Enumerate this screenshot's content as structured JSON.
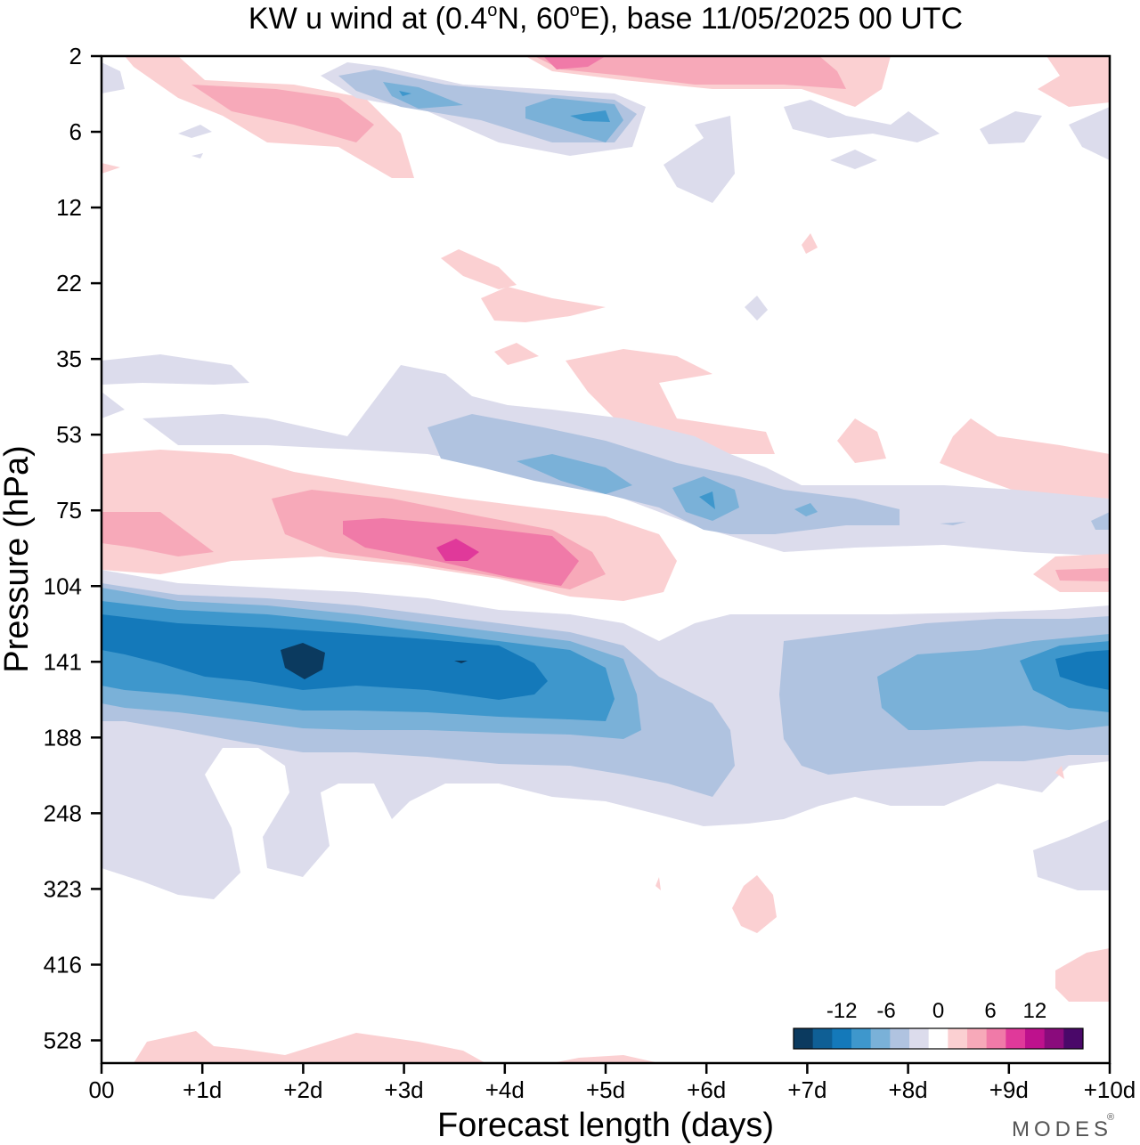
{
  "chart_data": {
    "type": "heatmap",
    "title": "KW u wind at (0.4°N, 60°E),  base 11/05/2025  00 UTC",
    "title_parts": {
      "prefix": "KW u wind at (0.4",
      "deg1": "o",
      "mid": "N, 60",
      "deg2": "o",
      "suffix": "E),  base 11/05/2025  00 UTC"
    },
    "xlabel": "Forecast length (days)",
    "ylabel": "Pressure (hPa)",
    "x_ticks": [
      "00",
      "+1d",
      "+2d",
      "+3d",
      "+4d",
      "+5d",
      "+6d",
      "+7d",
      "+8d",
      "+9d",
      "+10d"
    ],
    "xlim": [
      0,
      10
    ],
    "y_ticks": [
      "2",
      "6",
      "12",
      "22",
      "35",
      "53",
      "75",
      "104",
      "141",
      "188",
      "248",
      "323",
      "416",
      "528"
    ],
    "y_order": "top-to-bottom",
    "colorbar": {
      "tick_labels": [
        "-12",
        "-6",
        "0",
        "6",
        "12"
      ],
      "levels": [
        -15,
        -12.5,
        -10,
        -7.5,
        -5,
        -2.5,
        -1,
        1,
        2.5,
        5,
        7.5,
        10,
        12.5,
        15
      ],
      "colors": [
        "#0b3a5f",
        "#0f5f95",
        "#1479ba",
        "#3e97cc",
        "#7ab1d8",
        "#b0c3e0",
        "#dcdcec",
        "#ffffff",
        "#fbd0d2",
        "#f7a9b9",
        "#f07aa8",
        "#e0399a",
        "#be118d",
        "#8a0b7c",
        "#4a0869"
      ]
    },
    "features": [
      {
        "sign": "negative",
        "level": -12,
        "x_days": 2.0,
        "pressure": "141",
        "description_label": ""
      },
      {
        "sign": "positive",
        "level": 9,
        "x_days": 3.5,
        "pressure": "104",
        "description_label": ""
      },
      {
        "sign": "negative",
        "level": -8,
        "x_days": 5.2,
        "pressure": "6",
        "description_label": ""
      },
      {
        "sign": "negative",
        "level": -10,
        "x_days": 9.8,
        "pressure": "141",
        "description_label": ""
      }
    ]
  },
  "branding": {
    "logo_text": "MODES",
    "registered_mark": "®"
  }
}
